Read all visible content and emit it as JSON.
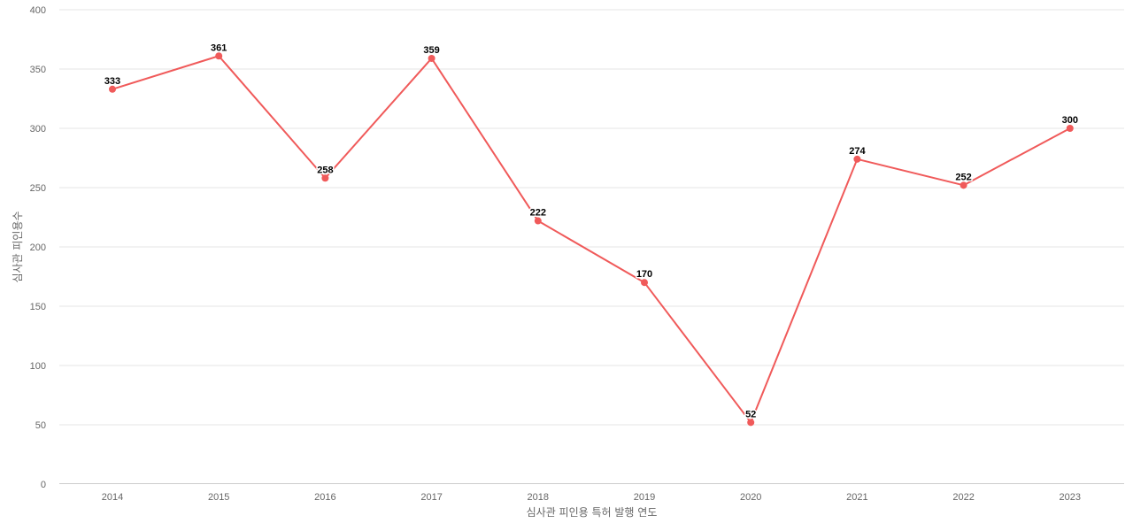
{
  "chart_data": {
    "type": "line",
    "categories": [
      "2014",
      "2015",
      "2016",
      "2017",
      "2018",
      "2019",
      "2020",
      "2021",
      "2022",
      "2023"
    ],
    "series": [
      {
        "values": [
          333,
          361,
          258,
          359,
          222,
          170,
          52,
          274,
          252,
          300
        ],
        "color": "#f05a5a"
      }
    ],
    "title": "",
    "xlabel": "심사관 피인용 특허 발행 연도",
    "ylabel": "심사관 피인용수",
    "ylim": [
      0,
      400
    ],
    "yticks": [
      0,
      50,
      100,
      150,
      200,
      250,
      300,
      350,
      400
    ],
    "grid": true,
    "data_labels": true
  }
}
